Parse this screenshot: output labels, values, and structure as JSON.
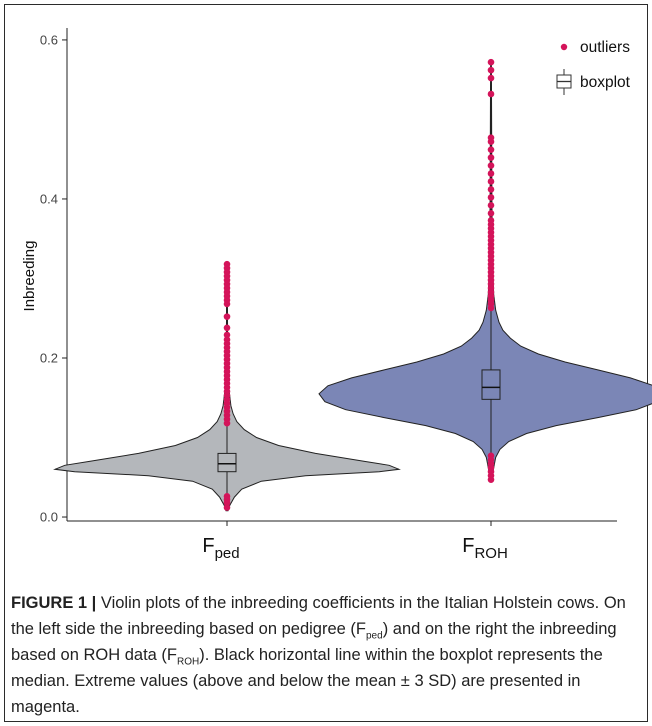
{
  "chart_data": {
    "type": "violin",
    "ylabel": "Inbreeding",
    "xlabel": "",
    "ylim": [
      -0.005,
      0.615
    ],
    "yticks": [
      {
        "value": 0.0,
        "label": "0.0"
      },
      {
        "value": 0.2,
        "label": "0.2"
      },
      {
        "value": 0.4,
        "label": "0.4"
      },
      {
        "value": 0.6,
        "label": "0.6"
      }
    ],
    "legend": {
      "position": "top-right",
      "items": [
        {
          "label": "outliers",
          "symbol": "point",
          "color": "#d4145a"
        },
        {
          "label": "boxplot",
          "symbol": "box",
          "color": "#333333"
        }
      ]
    },
    "series": [
      {
        "key": "F_ped",
        "label_main": "F",
        "label_sub": "ped",
        "fill": "#b4b7bb",
        "min": 0.008,
        "max": 0.318,
        "boxplot": {
          "q1": 0.057,
          "median": 0.067,
          "q3": 0.08
        },
        "density": [
          [
            0.008,
            0.004
          ],
          [
            0.015,
            0.012
          ],
          [
            0.025,
            0.03
          ],
          [
            0.035,
            0.06
          ],
          [
            0.045,
            0.14
          ],
          [
            0.052,
            0.32
          ],
          [
            0.057,
            0.62
          ],
          [
            0.06,
            0.7
          ],
          [
            0.065,
            0.66
          ],
          [
            0.07,
            0.56
          ],
          [
            0.08,
            0.36
          ],
          [
            0.09,
            0.21
          ],
          [
            0.1,
            0.12
          ],
          [
            0.11,
            0.07
          ],
          [
            0.12,
            0.04
          ],
          [
            0.13,
            0.025
          ],
          [
            0.14,
            0.016
          ],
          [
            0.16,
            0.008
          ],
          [
            0.18,
            0.004
          ],
          [
            0.2,
            0.003
          ],
          [
            0.25,
            0.002
          ],
          [
            0.318,
            0.0015
          ]
        ],
        "outliers": [
          0.012,
          0.018,
          0.022,
          0.026,
          0.118,
          0.123,
          0.128,
          0.133,
          0.138,
          0.143,
          0.148,
          0.153,
          0.158,
          0.163,
          0.168,
          0.173,
          0.178,
          0.183,
          0.188,
          0.193,
          0.198,
          0.203,
          0.208,
          0.213,
          0.218,
          0.223,
          0.229,
          0.238,
          0.252,
          0.268,
          0.273,
          0.278,
          0.283,
          0.288,
          0.293,
          0.298,
          0.303,
          0.308,
          0.313,
          0.318
        ]
      },
      {
        "key": "F_ROH",
        "label_main": "F",
        "label_sub": "ROH",
        "fill": "#7b86b6",
        "min": 0.045,
        "max": 0.573,
        "boxplot": {
          "q1": 0.148,
          "median": 0.163,
          "q3": 0.185
        },
        "density": [
          [
            0.045,
            0.003
          ],
          [
            0.06,
            0.008
          ],
          [
            0.075,
            0.016
          ],
          [
            0.085,
            0.03
          ],
          [
            0.095,
            0.06
          ],
          [
            0.105,
            0.12
          ],
          [
            0.115,
            0.22
          ],
          [
            0.125,
            0.36
          ],
          [
            0.135,
            0.49
          ],
          [
            0.145,
            0.56
          ],
          [
            0.155,
            0.58
          ],
          [
            0.165,
            0.55
          ],
          [
            0.175,
            0.47
          ],
          [
            0.185,
            0.36
          ],
          [
            0.195,
            0.25
          ],
          [
            0.205,
            0.16
          ],
          [
            0.215,
            0.1
          ],
          [
            0.225,
            0.065
          ],
          [
            0.235,
            0.04
          ],
          [
            0.245,
            0.027
          ],
          [
            0.26,
            0.016
          ],
          [
            0.28,
            0.009
          ],
          [
            0.32,
            0.005
          ],
          [
            0.4,
            0.003
          ],
          [
            0.5,
            0.002
          ],
          [
            0.573,
            0.0015
          ]
        ],
        "outliers": [
          0.047,
          0.052,
          0.057,
          0.062,
          0.067,
          0.072,
          0.077,
          0.263,
          0.268,
          0.273,
          0.278,
          0.283,
          0.288,
          0.293,
          0.298,
          0.303,
          0.308,
          0.313,
          0.318,
          0.323,
          0.328,
          0.333,
          0.338,
          0.343,
          0.348,
          0.353,
          0.358,
          0.363,
          0.368,
          0.373,
          0.382,
          0.392,
          0.402,
          0.412,
          0.422,
          0.432,
          0.442,
          0.452,
          0.462,
          0.472,
          0.477,
          0.532,
          0.552,
          0.562,
          0.572
        ]
      }
    ]
  },
  "caption": {
    "label": "FIGURE 1 |",
    "text_1": " Violin plots of the inbreeding coefficients in the Italian Holstein cows. On the left side the inbreeding based on pedigree (F",
    "sub_1": "ped",
    "text_2": ") and on the right the inbreeding based on ROH data (F",
    "sub_2": "ROH",
    "text_3": "). Black horizontal line within the boxplot represents the median. Extreme values (above and below the mean ± 3 SD) are presented in magenta."
  }
}
